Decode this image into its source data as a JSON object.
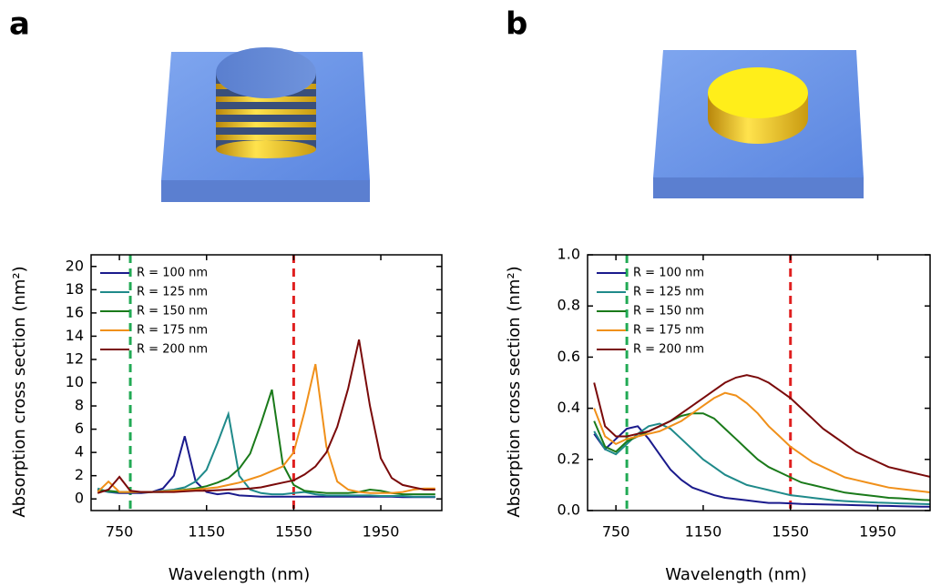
{
  "panels": [
    "a",
    "b"
  ],
  "chart_data": [
    {
      "type": "line",
      "xlabel": "Wavelength (nm)",
      "ylabel": "Absorption cross section (nm²)",
      "xlim": [
        620,
        2230
      ],
      "xticks": [
        750,
        1150,
        1550,
        1950
      ],
      "ylim": [
        -1,
        21
      ],
      "yticks": [
        0,
        2,
        4,
        6,
        8,
        10,
        12,
        14,
        16,
        18,
        20
      ],
      "vlines": [
        {
          "x": 800,
          "color": "#22aa55"
        },
        {
          "x": 1550,
          "color": "#e02020"
        }
      ],
      "x": [
        650,
        700,
        750,
        800,
        850,
        900,
        950,
        1000,
        1050,
        1100,
        1150,
        1200,
        1250,
        1300,
        1350,
        1400,
        1450,
        1500,
        1550,
        1600,
        1650,
        1700,
        1750,
        1800,
        1850,
        1900,
        1950,
        2000,
        2050,
        2100,
        2150,
        2200
      ],
      "series": [
        {
          "name": "R = 100 nm",
          "color": "#1a1a8c",
          "values": [
            0.8,
            0.6,
            0.5,
            0.5,
            0.5,
            0.6,
            0.9,
            2.0,
            5.4,
            1.5,
            0.6,
            0.4,
            0.5,
            0.3,
            0.25,
            0.2,
            0.2,
            0.2,
            0.2,
            0.2,
            0.2,
            0.2,
            0.2,
            0.2,
            0.2,
            0.2,
            0.2,
            0.2,
            0.15,
            0.15,
            0.15,
            0.15
          ]
        },
        {
          "name": "R = 125 nm",
          "color": "#1f8a8a",
          "values": [
            0.9,
            0.6,
            0.6,
            0.6,
            0.6,
            0.6,
            0.7,
            0.8,
            1.0,
            1.5,
            2.5,
            4.8,
            7.3,
            2.0,
            0.8,
            0.5,
            0.4,
            0.4,
            0.5,
            0.6,
            0.4,
            0.3,
            0.3,
            0.3,
            0.3,
            0.3,
            0.25,
            0.25,
            0.25,
            0.2,
            0.2,
            0.2
          ]
        },
        {
          "name": "R = 150 nm",
          "color": "#1a7a1a",
          "values": [
            0.7,
            0.7,
            0.6,
            0.6,
            0.6,
            0.6,
            0.6,
            0.7,
            0.8,
            0.9,
            1.1,
            1.4,
            1.8,
            2.6,
            3.9,
            6.5,
            9.4,
            3.0,
            1.2,
            0.7,
            0.6,
            0.5,
            0.5,
            0.5,
            0.6,
            0.8,
            0.7,
            0.5,
            0.4,
            0.4,
            0.4,
            0.4
          ]
        },
        {
          "name": "R = 175 nm",
          "color": "#f0901a",
          "values": [
            0.6,
            1.5,
            0.6,
            0.6,
            0.6,
            0.6,
            0.65,
            0.7,
            0.75,
            0.8,
            0.9,
            1.0,
            1.2,
            1.4,
            1.7,
            2.0,
            2.4,
            2.8,
            4.0,
            7.5,
            11.6,
            4.5,
            1.5,
            0.8,
            0.6,
            0.5,
            0.5,
            0.5,
            0.6,
            0.8,
            0.9,
            0.9
          ]
        },
        {
          "name": "R = 200 nm",
          "color": "#7a0a0a",
          "values": [
            0.5,
            0.8,
            1.9,
            0.7,
            0.6,
            0.6,
            0.6,
            0.6,
            0.65,
            0.7,
            0.7,
            0.75,
            0.8,
            0.85,
            0.9,
            1.0,
            1.2,
            1.4,
            1.6,
            2.1,
            2.8,
            4.0,
            6.2,
            9.5,
            13.7,
            8.0,
            3.5,
            1.8,
            1.2,
            1.0,
            0.8,
            0.8
          ]
        }
      ]
    },
    {
      "type": "line",
      "xlabel": "Wavelength (nm)",
      "ylabel": "Absorption cross section (nm²)",
      "xlim": [
        620,
        2190
      ],
      "xticks": [
        750,
        1150,
        1550,
        1950
      ],
      "ylim": [
        0,
        1
      ],
      "yticks": [
        {
          "value": 0,
          "label": "0.0"
        },
        0.2,
        0.4,
        0.6,
        0.8,
        {
          "value": 1,
          "label": "1.0"
        }
      ],
      "vlines": [
        {
          "x": 800,
          "color": "#22aa55"
        },
        {
          "x": 1550,
          "color": "#e02020"
        }
      ],
      "x": [
        650,
        700,
        750,
        800,
        850,
        900,
        950,
        1000,
        1050,
        1100,
        1150,
        1200,
        1250,
        1300,
        1350,
        1400,
        1450,
        1500,
        1550,
        1600,
        1650,
        1700,
        1750,
        1800,
        1850,
        1900,
        1950,
        2000,
        2050,
        2100,
        2150,
        2200
      ],
      "series": [
        {
          "name": "R = 100 nm",
          "color": "#1a1a8c",
          "values": [
            0.3,
            0.24,
            0.28,
            0.32,
            0.33,
            0.28,
            0.22,
            0.16,
            0.12,
            0.09,
            0.075,
            0.06,
            0.05,
            0.045,
            0.04,
            0.035,
            0.03,
            0.03,
            0.028,
            0.026,
            0.025,
            0.024,
            0.023,
            0.022,
            0.021,
            0.02,
            0.019,
            0.018,
            0.017,
            0.016,
            0.015,
            0.015
          ]
        },
        {
          "name": "R = 125 nm",
          "color": "#1f8a8a",
          "values": [
            0.31,
            0.24,
            0.22,
            0.26,
            0.3,
            0.33,
            0.34,
            0.32,
            0.28,
            0.24,
            0.2,
            0.17,
            0.14,
            0.12,
            0.1,
            0.09,
            0.08,
            0.07,
            0.06,
            0.055,
            0.05,
            0.045,
            0.04,
            0.037,
            0.035,
            0.033,
            0.031,
            0.03,
            0.028,
            0.027,
            0.026,
            0.025
          ]
        },
        {
          "name": "R = 150 nm",
          "color": "#1a7a1a",
          "values": [
            0.35,
            0.25,
            0.23,
            0.27,
            0.29,
            0.31,
            0.33,
            0.35,
            0.37,
            0.38,
            0.38,
            0.36,
            0.32,
            0.28,
            0.24,
            0.2,
            0.17,
            0.15,
            0.13,
            0.11,
            0.1,
            0.09,
            0.08,
            0.07,
            0.065,
            0.06,
            0.055,
            0.05,
            0.048,
            0.045,
            0.042,
            0.04
          ]
        },
        {
          "name": "R = 175 nm",
          "color": "#f0901a",
          "values": [
            0.4,
            0.29,
            0.26,
            0.28,
            0.29,
            0.3,
            0.31,
            0.33,
            0.35,
            0.38,
            0.41,
            0.44,
            0.46,
            0.45,
            0.42,
            0.38,
            0.33,
            0.29,
            0.25,
            0.22,
            0.19,
            0.17,
            0.15,
            0.13,
            0.12,
            0.11,
            0.1,
            0.09,
            0.085,
            0.08,
            0.075,
            0.07
          ]
        },
        {
          "name": "R = 200 nm",
          "color": "#7a0a0a",
          "values": [
            0.5,
            0.33,
            0.29,
            0.29,
            0.3,
            0.31,
            0.33,
            0.35,
            0.38,
            0.41,
            0.44,
            0.47,
            0.5,
            0.52,
            0.53,
            0.52,
            0.5,
            0.47,
            0.44,
            0.4,
            0.36,
            0.32,
            0.29,
            0.26,
            0.23,
            0.21,
            0.19,
            0.17,
            0.16,
            0.15,
            0.14,
            0.13
          ]
        }
      ]
    }
  ]
}
